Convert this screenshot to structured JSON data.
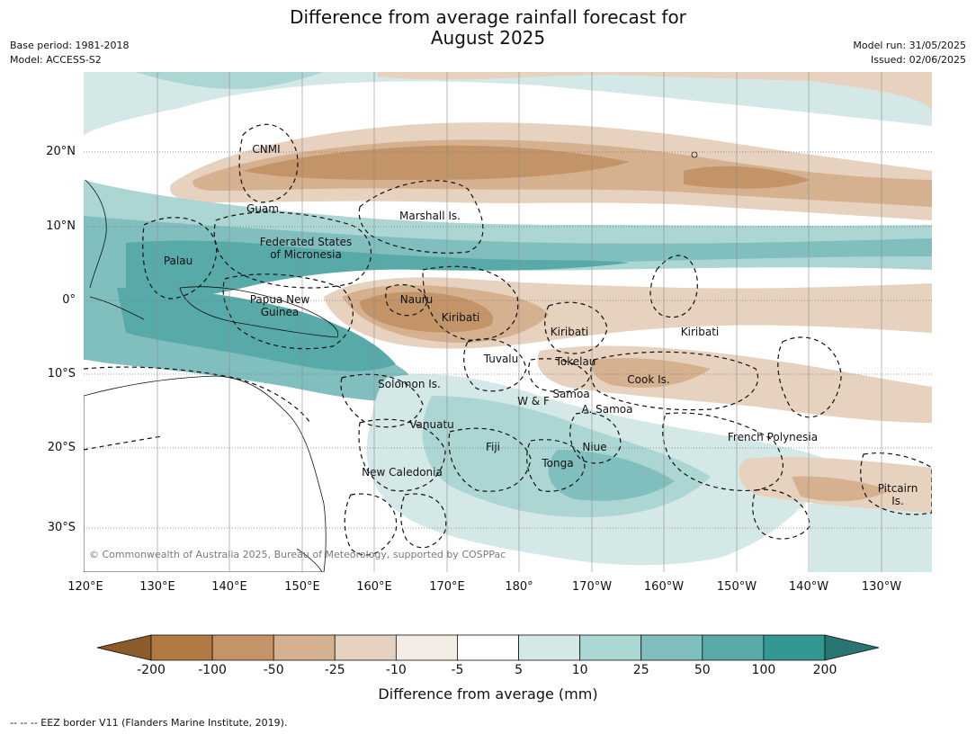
{
  "title_line1": "Difference from average rainfall forecast for",
  "title_line2": "August 2025",
  "meta_left": {
    "base_period": "Base period: 1981-2018",
    "model": "Model: ACCESS-S2"
  },
  "meta_right": {
    "model_run": "Model run: 31/05/2025",
    "issued": "Issued: 02/06/2025"
  },
  "lat_labels": [
    "20°N",
    "10°N",
    "0°",
    "10°S",
    "20°S",
    "30°S"
  ],
  "lon_labels": [
    "120°E",
    "130°E",
    "140°E",
    "150°E",
    "160°E",
    "170°E",
    "180°",
    "170°W",
    "160°W",
    "150°W",
    "140°W",
    "130°W"
  ],
  "places": {
    "cnmi": "CNMI",
    "guam": "Guam",
    "marshall": "Marshall Is.",
    "fsm1": "Federated States",
    "fsm2": "of Micronesia",
    "palau": "Palau",
    "png1": "Papua New",
    "png2": "Guinea",
    "nauru": "Nauru",
    "kiribati_w": "Kiribati",
    "kiribati_c": "Kiribati",
    "kiribati_e": "Kiribati",
    "tuvalu": "Tuvalu",
    "tokelau": "Tokelau",
    "cook": "Cook Is.",
    "solomon": "Solomon Is.",
    "wf": "W & F",
    "samoa": "Samoa",
    "asamoa": "A. Samoa",
    "vanuatu": "Vanuatu",
    "fiji": "Fiji",
    "niue": "Niue",
    "tonga": "Tonga",
    "newcal": "New Caledonia",
    "frpoly": "French Polynesia",
    "pitcairn1": "Pitcairn",
    "pitcairn2": "Is."
  },
  "copyright": "© Commonwealth of Australia 2025, Bureau of Meteorology, supported by COSPPac",
  "colorbar": {
    "ticks": [
      "-200",
      "-100",
      "-50",
      "-25",
      "-10",
      "-5",
      "5",
      "10",
      "25",
      "50",
      "100",
      "200"
    ],
    "colors": [
      "#8c5a2b",
      "#b07a42",
      "#c29467",
      "#d6b18f",
      "#e6d2bf",
      "#f2ece4",
      "#ffffff",
      "#d4e9e7",
      "#acd6d4",
      "#80bfbd",
      "#58aaa8",
      "#339794",
      "#2a7472"
    ],
    "title": "Difference from average (mm)"
  },
  "footnote": "--  --  -- EEZ border V11 (Flanders Marine Institute, 2019)."
}
